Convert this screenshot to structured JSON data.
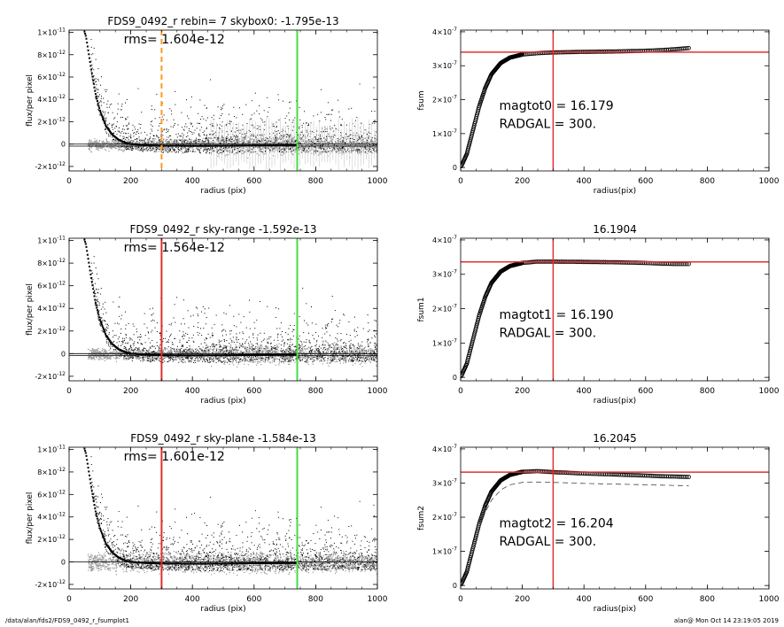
{
  "footer": {
    "left": "/data/alan/fds2/FDS9_0492_r_fsumplot1",
    "right": "alan@  Mon Oct 14 23:19:05 2019"
  },
  "colors": {
    "red": "#e03030",
    "green": "#44dd44",
    "orange": "#ff9922",
    "gray": "#9a9a9a"
  },
  "chart_data": [
    {
      "type": "scatter",
      "title": "FDS9_0492_r rebin= 7    skybox0: -1.795e-13",
      "annotation": "rms= 1.604e-12",
      "xlabel": "radius (pix)",
      "ylabel": "flux/per pixel",
      "xlim": [
        0,
        1000
      ],
      "ylim": [
        -2.4e-12,
        1.02e-11
      ],
      "xticks": [
        0,
        200,
        400,
        600,
        800,
        1000
      ],
      "xtick_labels": [
        "0",
        "200",
        "400",
        "600",
        "800",
        "1000"
      ],
      "yticks": [
        -2e-12,
        0,
        2e-12,
        4e-12,
        6e-12,
        8e-12,
        1e-11
      ],
      "ytick_labels": [
        [
          "-2×10",
          "-12"
        ],
        [
          "0",
          ""
        ],
        [
          "2×10",
          "-12"
        ],
        [
          "4×10",
          "-12"
        ],
        [
          "6×10",
          "-12"
        ],
        [
          "8×10",
          "-12"
        ],
        [
          "1×10",
          "-11"
        ]
      ],
      "vlines": [
        {
          "x": 300,
          "color": "#ff9922",
          "dashed": true
        },
        {
          "x": 740,
          "color": "#44dd44",
          "dashed": false
        }
      ],
      "hlines": [
        0,
        -1.8e-13
      ],
      "profile": {
        "x": [
          40,
          55,
          70,
          85,
          100,
          120,
          140,
          160,
          180,
          200,
          250,
          300,
          400,
          500,
          600,
          740
        ],
        "y": [
          1.1e-11,
          9.6e-12,
          7e-12,
          4.6e-12,
          3e-12,
          1.6e-12,
          8.5e-13,
          4e-13,
          1.5e-13,
          0,
          -1e-13,
          -1.4e-13,
          -1.6e-13,
          -1.5e-13,
          -1.2e-13,
          -1e-13
        ]
      }
    },
    {
      "type": "line",
      "title": "",
      "annotation": [
        "magtot0 =  16.179",
        "RADGAL =    300."
      ],
      "xlabel": "radius(pix)",
      "ylabel": "fsum",
      "xlim": [
        0,
        1000
      ],
      "ylim": [
        -1e-08,
        4.05e-07
      ],
      "xticks": [
        0,
        200,
        400,
        600,
        800,
        1000
      ],
      "xtick_labels": [
        "0",
        "200",
        "400",
        "600",
        "800",
        "1000"
      ],
      "yticks": [
        0,
        1e-07,
        2e-07,
        3e-07,
        4e-07
      ],
      "ytick_labels": [
        [
          "0",
          ""
        ],
        [
          "1×10",
          "-7"
        ],
        [
          "2×10",
          "-7"
        ],
        [
          "3×10",
          "-7"
        ],
        [
          "4×10",
          "-7"
        ]
      ],
      "hline": 3.4e-07,
      "vline": 300,
      "curve": {
        "x": [
          0,
          20,
          40,
          60,
          80,
          100,
          130,
          160,
          200,
          250,
          300,
          400,
          500,
          600,
          650,
          700,
          740
        ],
        "y": [
          0,
          4e-08,
          1.1e-07,
          1.8e-07,
          2.35e-07,
          2.75e-07,
          3.08e-07,
          3.24e-07,
          3.33e-07,
          3.37e-07,
          3.39e-07,
          3.41e-07,
          3.42e-07,
          3.44e-07,
          3.46e-07,
          3.49e-07,
          3.52e-07
        ]
      }
    },
    {
      "type": "scatter",
      "title": "FDS9_0492_r sky-range -1.592e-13",
      "annotation": "rms= 1.564e-12",
      "xlabel": "radius (pix)",
      "ylabel": "flux/per pixel",
      "xlim": [
        0,
        1000
      ],
      "ylim": [
        -2.4e-12,
        1.02e-11
      ],
      "xticks": [
        0,
        200,
        400,
        600,
        800,
        1000
      ],
      "xtick_labels": [
        "0",
        "200",
        "400",
        "600",
        "800",
        "1000"
      ],
      "yticks": [
        -2e-12,
        0,
        2e-12,
        4e-12,
        6e-12,
        8e-12,
        1e-11
      ],
      "ytick_labels": [
        [
          "-2×10",
          "-12"
        ],
        [
          "0",
          ""
        ],
        [
          "2×10",
          "-12"
        ],
        [
          "4×10",
          "-12"
        ],
        [
          "6×10",
          "-12"
        ],
        [
          "8×10",
          "-12"
        ],
        [
          "1×10",
          "-11"
        ]
      ],
      "vlines": [
        {
          "x": 300,
          "color": "#e03030",
          "dashed": false
        },
        {
          "x": 740,
          "color": "#44dd44",
          "dashed": false
        }
      ],
      "hlines": [
        0,
        -1.6e-13
      ],
      "profile": {
        "x": [
          40,
          55,
          70,
          85,
          100,
          120,
          140,
          160,
          180,
          200,
          250,
          300,
          400,
          500,
          600,
          740
        ],
        "y": [
          1.1e-11,
          9.6e-12,
          7e-12,
          4.6e-12,
          3e-12,
          1.6e-12,
          8.5e-13,
          4e-13,
          1.5e-13,
          0,
          -1e-13,
          -1.4e-13,
          -1.6e-13,
          -1.5e-13,
          -1.2e-13,
          -1e-13
        ]
      }
    },
    {
      "type": "line",
      "title": "16.1904",
      "annotation": [
        "magtot1 =  16.190",
        "RADGAL =    300."
      ],
      "xlabel": "radius(pix)",
      "ylabel": "fsum1",
      "xlim": [
        0,
        1000
      ],
      "ylim": [
        -1e-08,
        4.05e-07
      ],
      "xticks": [
        0,
        200,
        400,
        600,
        800,
        1000
      ],
      "xtick_labels": [
        "0",
        "200",
        "400",
        "600",
        "800",
        "1000"
      ],
      "yticks": [
        0,
        1e-07,
        2e-07,
        3e-07,
        4e-07
      ],
      "ytick_labels": [
        [
          "0",
          ""
        ],
        [
          "1×10",
          "-7"
        ],
        [
          "2×10",
          "-7"
        ],
        [
          "3×10",
          "-7"
        ],
        [
          "4×10",
          "-7"
        ]
      ],
      "hline": 3.36e-07,
      "vline": 300,
      "curve": {
        "x": [
          0,
          20,
          40,
          60,
          80,
          100,
          130,
          160,
          200,
          250,
          300,
          400,
          500,
          600,
          650,
          700,
          740
        ],
        "y": [
          0,
          4e-08,
          1.1e-07,
          1.8e-07,
          2.35e-07,
          2.75e-07,
          3.08e-07,
          3.24e-07,
          3.33e-07,
          3.37e-07,
          3.37e-07,
          3.36e-07,
          3.35e-07,
          3.33e-07,
          3.31e-07,
          3.3e-07,
          3.3e-07
        ]
      }
    },
    {
      "type": "scatter",
      "title": "FDS9_0492_r sky-plane -1.584e-13",
      "annotation": "rms= 1.601e-12",
      "xlabel": "radius (pix)",
      "ylabel": "flux/per pixel",
      "xlim": [
        0,
        1000
      ],
      "ylim": [
        -2.4e-12,
        1.02e-11
      ],
      "xticks": [
        0,
        200,
        400,
        600,
        800,
        1000
      ],
      "xtick_labels": [
        "0",
        "200",
        "400",
        "600",
        "800",
        "1000"
      ],
      "yticks": [
        -2e-12,
        0,
        2e-12,
        4e-12,
        6e-12,
        8e-12,
        1e-11
      ],
      "ytick_labels": [
        [
          "-2×10",
          "-12"
        ],
        [
          "0",
          ""
        ],
        [
          "2×10",
          "-12"
        ],
        [
          "4×10",
          "-12"
        ],
        [
          "6×10",
          "-12"
        ],
        [
          "8×10",
          "-12"
        ],
        [
          "1×10",
          "-11"
        ]
      ],
      "vlines": [
        {
          "x": 300,
          "color": "#e03030",
          "dashed": false
        },
        {
          "x": 740,
          "color": "#44dd44",
          "dashed": false
        }
      ],
      "hlines": [
        0
      ],
      "profile": {
        "x": [
          40,
          55,
          70,
          85,
          100,
          120,
          140,
          160,
          180,
          200,
          250,
          300,
          400,
          500,
          600,
          740
        ],
        "y": [
          1.1e-11,
          9.6e-12,
          7e-12,
          4.6e-12,
          3e-12,
          1.6e-12,
          8.5e-13,
          4e-13,
          1.5e-13,
          0,
          -1e-13,
          -1.4e-13,
          -1.6e-13,
          -1.5e-13,
          -1.2e-13,
          -1e-13
        ]
      }
    },
    {
      "type": "line",
      "title": "16.2045",
      "annotation": [
        "magtot2 =  16.204",
        "RADGAL =    300."
      ],
      "xlabel": "radius(pix)",
      "ylabel": "fsum2",
      "xlim": [
        0,
        1000
      ],
      "ylim": [
        -1e-08,
        4.05e-07
      ],
      "xticks": [
        0,
        200,
        400,
        600,
        800,
        1000
      ],
      "xtick_labels": [
        "0",
        "200",
        "400",
        "600",
        "800",
        "1000"
      ],
      "yticks": [
        0,
        1e-07,
        2e-07,
        3e-07,
        4e-07
      ],
      "ytick_labels": [
        [
          "0",
          ""
        ],
        [
          "1×10",
          "-7"
        ],
        [
          "2×10",
          "-7"
        ],
        [
          "3×10",
          "-7"
        ],
        [
          "4×10",
          "-7"
        ]
      ],
      "hline": 3.32e-07,
      "vline": 300,
      "curve": {
        "x": [
          0,
          20,
          40,
          60,
          80,
          100,
          130,
          160,
          200,
          250,
          300,
          400,
          500,
          600,
          650,
          700,
          740
        ],
        "y": [
          0,
          4e-08,
          1.1e-07,
          1.8e-07,
          2.35e-07,
          2.75e-07,
          3.08e-07,
          3.24e-07,
          3.33e-07,
          3.35e-07,
          3.32e-07,
          3.28e-07,
          3.25e-07,
          3.22e-07,
          3.2e-07,
          3.19e-07,
          3.18e-07
        ]
      },
      "dashed_curve": {
        "x": [
          0,
          20,
          40,
          60,
          80,
          100,
          130,
          160,
          200,
          250,
          300,
          400,
          500,
          600,
          650,
          700,
          740
        ],
        "y": [
          0,
          3.7e-08,
          1e-07,
          1.65e-07,
          2.15e-07,
          2.5e-07,
          2.8e-07,
          2.95e-07,
          3.02e-07,
          3.03e-07,
          3.02e-07,
          2.99e-07,
          2.97e-07,
          2.95e-07,
          2.94e-07,
          2.93e-07,
          2.92e-07
        ]
      }
    }
  ]
}
